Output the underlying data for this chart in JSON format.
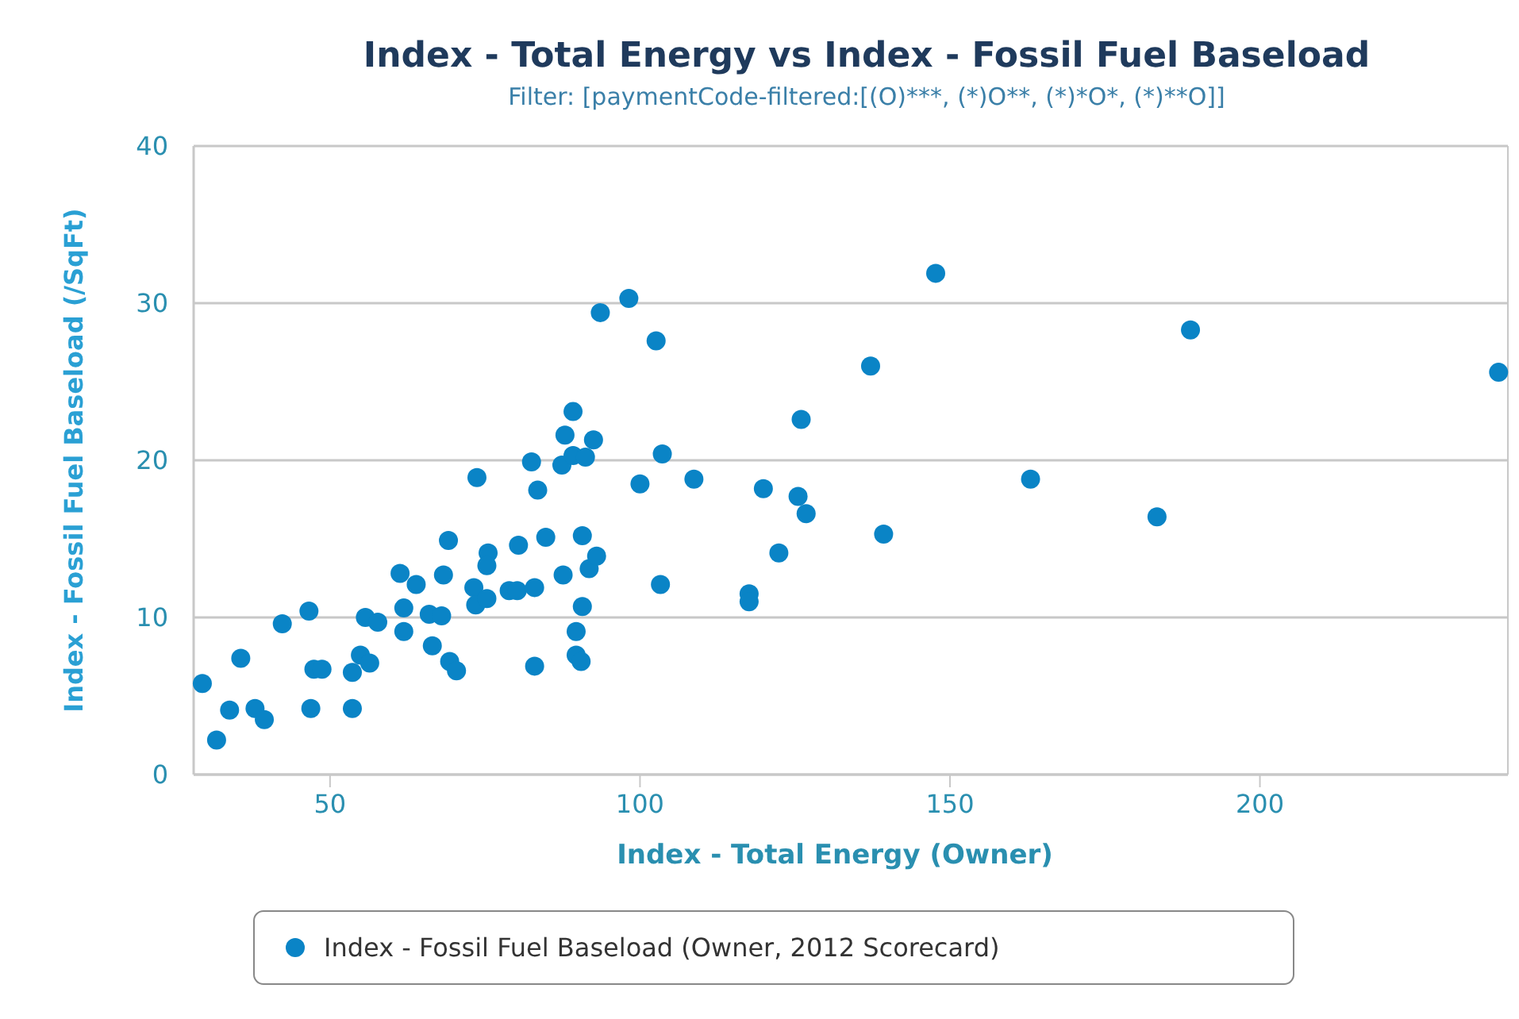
{
  "chart_data": {
    "type": "scatter",
    "title": "Index - Total Energy vs Index - Fossil Fuel Baseload",
    "subtitle": "Filter: [paymentCode-filtered:[(O)***, (*)O**, (*)*O*, (*)**O]]",
    "xlabel": "Index - Total Energy (Owner)",
    "ylabel": "Index - Fossil Fuel Baseload (/SqFt)",
    "xlim": [
      28,
      240
    ],
    "xticks": [
      50,
      100,
      150,
      200
    ],
    "ylim": [
      0,
      40
    ],
    "yticks": [
      0,
      10,
      20,
      30,
      40
    ],
    "grid": "y",
    "legend": "bottom",
    "marker": "circle",
    "series": [
      {
        "name": "Index - Fossil Fuel Baseload (Owner, 2012 Scorecard)",
        "color": "#0a84c6",
        "x": [
          29.4,
          31.7,
          33.8,
          35.6,
          37.9,
          39.4,
          42.3,
          46.6,
          46.9,
          47.4,
          48.7,
          53.6,
          53.6,
          54.9,
          56.4,
          55.7,
          57.7,
          61.3,
          63.9,
          61.9,
          61.9,
          66.0,
          68.0,
          66.5,
          69.3,
          70.4,
          68.3,
          69.1,
          73.7,
          73.2,
          73.5,
          75.5,
          75.3,
          75.3,
          78.9,
          80.2,
          80.4,
          83.0,
          82.5,
          83.5,
          83.0,
          84.8,
          87.6,
          89.2,
          87.9,
          87.4,
          89.2,
          91.2,
          92.5,
          90.7,
          91.8,
          93.0,
          90.7,
          89.7,
          89.7,
          90.5,
          93.6,
          98.2,
          102.6,
          103.6,
          100.0,
          108.7,
          103.3,
          147.7,
          188.8,
          238.5,
          137.2,
          126.0,
          119.9,
          125.5,
          126.8,
          122.4,
          139.3,
          163.0,
          183.4,
          117.6,
          117.6
        ],
        "values": [
          5.8,
          2.2,
          4.1,
          7.4,
          4.2,
          3.5,
          9.6,
          10.4,
          4.2,
          6.7,
          6.7,
          4.2,
          6.5,
          7.6,
          7.1,
          10.0,
          9.7,
          12.8,
          12.1,
          10.6,
          9.1,
          10.2,
          10.1,
          8.2,
          7.2,
          6.6,
          12.7,
          14.9,
          18.9,
          11.9,
          10.8,
          14.1,
          13.3,
          11.2,
          11.7,
          11.7,
          14.6,
          11.9,
          19.9,
          18.1,
          6.9,
          15.1,
          12.7,
          23.1,
          21.6,
          19.7,
          20.3,
          20.2,
          21.3,
          15.2,
          13.1,
          13.9,
          10.7,
          9.1,
          7.6,
          7.2,
          29.4,
          30.3,
          27.6,
          20.4,
          18.5,
          18.8,
          12.1,
          31.9,
          28.3,
          25.6,
          26.0,
          22.6,
          18.2,
          17.7,
          16.6,
          14.1,
          15.3,
          18.8,
          16.4,
          11.5,
          11.0
        ]
      }
    ]
  }
}
